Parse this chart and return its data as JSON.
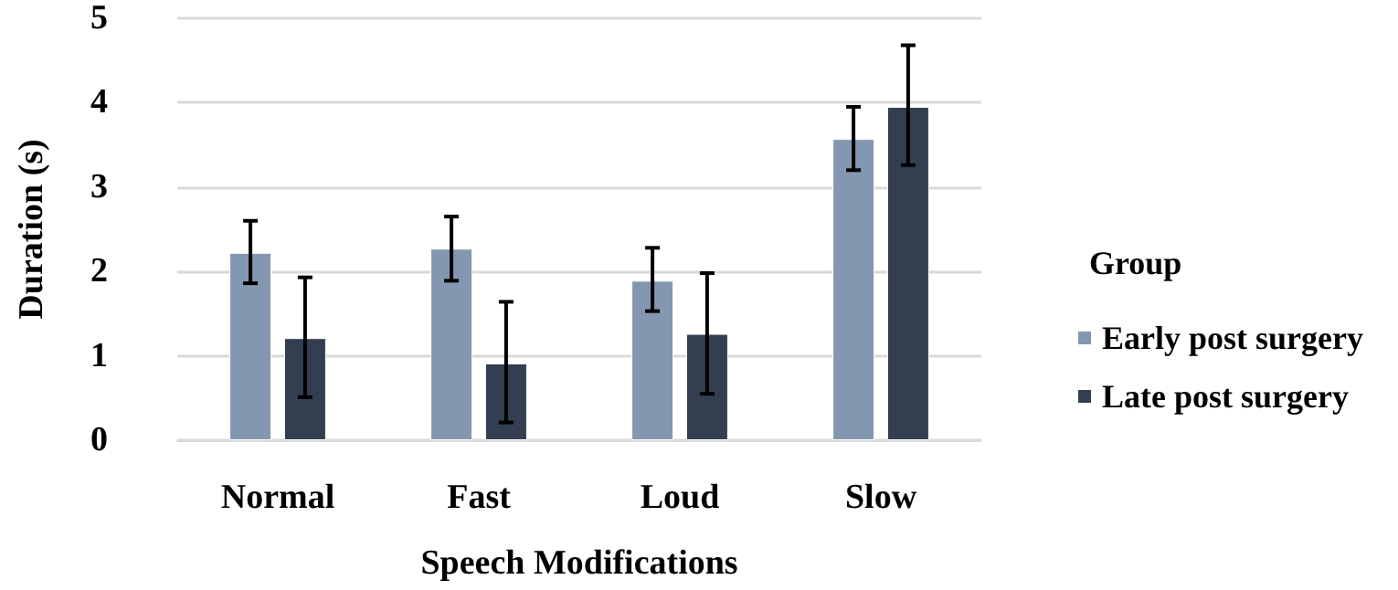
{
  "chart_data": {
    "type": "bar",
    "xlabel": "Speech Modifications",
    "ylabel": "Duration (s)",
    "legend_title": "Group",
    "categories": [
      "Normal",
      "Fast",
      "Loud",
      "Slow"
    ],
    "series": [
      {
        "name": "Early post surgery",
        "color": "#8497b0",
        "values": [
          2.22,
          2.27,
          1.89,
          3.57
        ],
        "errors": [
          [
            1.86,
            2.6
          ],
          [
            1.89,
            2.65
          ],
          [
            1.53,
            2.28
          ],
          [
            3.2,
            3.95
          ]
        ]
      },
      {
        "name": "Late post surgery",
        "color": "#333f50",
        "values": [
          1.21,
          0.91,
          1.26,
          3.95
        ],
        "errors": [
          [
            0.51,
            1.93
          ],
          [
            0.21,
            1.64
          ],
          [
            0.55,
            1.98
          ],
          [
            3.26,
            4.68
          ]
        ]
      }
    ],
    "ylim": [
      0,
      5
    ],
    "yticks": [
      0,
      1,
      2,
      3,
      4,
      5
    ],
    "grid": "y",
    "legend": "right"
  }
}
